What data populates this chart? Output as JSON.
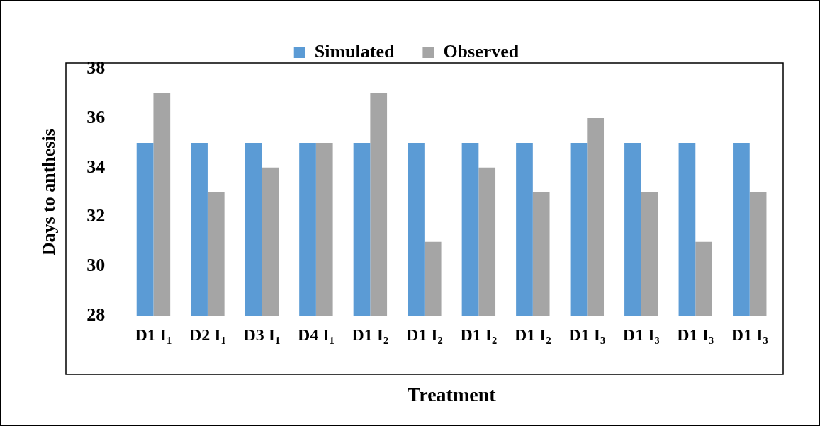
{
  "chart_data": {
    "type": "bar",
    "xlabel": "Treatment",
    "ylabel": "Days to anthesis",
    "categories": [
      "D1 I₁",
      "D2 I₁",
      "D3 I₁",
      "D4 I₁",
      "D1 I₂",
      "D1 I₂",
      "D1 I₂",
      "D1 I₂",
      "D1 I₃",
      "D1 I₃",
      "D1 I₃",
      "D1 I₃"
    ],
    "series": [
      {
        "name": "Simulated",
        "color": "#5b9bd5",
        "values": [
          35,
          35,
          35,
          35,
          35,
          35,
          35,
          35,
          35,
          35,
          35,
          35
        ]
      },
      {
        "name": "Observed",
        "color": "#a5a5a5",
        "values": [
          37,
          33,
          34,
          35,
          37,
          31,
          34,
          33,
          36,
          33,
          31,
          33
        ]
      }
    ],
    "ylim": [
      28,
      38
    ],
    "yticks": [
      28,
      30,
      32,
      34,
      36,
      38
    ],
    "grid": false,
    "legend": "top"
  }
}
